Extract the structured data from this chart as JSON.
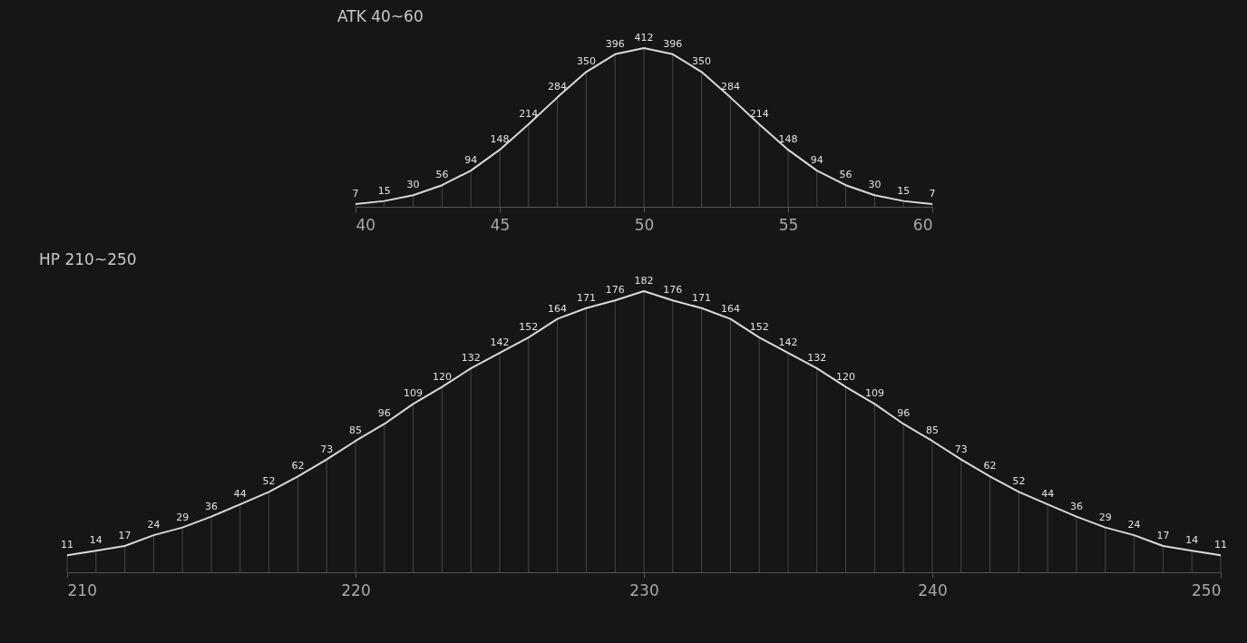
{
  "chart_data": [
    {
      "type": "line",
      "title": "ATK 40~60",
      "x": [
        40,
        41,
        42,
        43,
        44,
        45,
        46,
        47,
        48,
        49,
        50,
        51,
        52,
        53,
        54,
        55,
        56,
        57,
        58,
        59,
        60
      ],
      "series": [
        {
          "color": "#d9d9d9",
          "values": [
            7,
            15,
            30,
            56,
            94,
            148,
            214,
            284,
            350,
            396,
            412,
            396,
            350,
            284,
            214,
            148,
            94,
            56,
            30,
            15,
            7
          ]
        }
      ],
      "xlim": [
        40,
        60
      ],
      "xticks": [
        40,
        45,
        50,
        55,
        60
      ],
      "data_labels": true,
      "tick_labels": "x"
    },
    {
      "type": "line",
      "title": "HP 210~250",
      "x": [
        210,
        211,
        212,
        213,
        214,
        215,
        216,
        217,
        218,
        219,
        220,
        221,
        222,
        223,
        224,
        225,
        226,
        227,
        228,
        229,
        230,
        231,
        232,
        233,
        234,
        235,
        236,
        237,
        238,
        239,
        240,
        241,
        242,
        243,
        244,
        245,
        246,
        247,
        248,
        249,
        250
      ],
      "series": [
        {
          "color": "#d9d9d9",
          "values": [
            11,
            14,
            17,
            24,
            29,
            36,
            44,
            52,
            62,
            73,
            85,
            96,
            109,
            120,
            132,
            142,
            152,
            164,
            171,
            176,
            182,
            176,
            171,
            164,
            152,
            142,
            132,
            120,
            109,
            96,
            85,
            73,
            62,
            52,
            44,
            36,
            29,
            24,
            17,
            14,
            11
          ]
        }
      ],
      "xlim": [
        210,
        250
      ],
      "xticks": [
        210,
        220,
        230,
        240,
        250
      ],
      "data_labels": true,
      "tick_labels": "x"
    }
  ]
}
